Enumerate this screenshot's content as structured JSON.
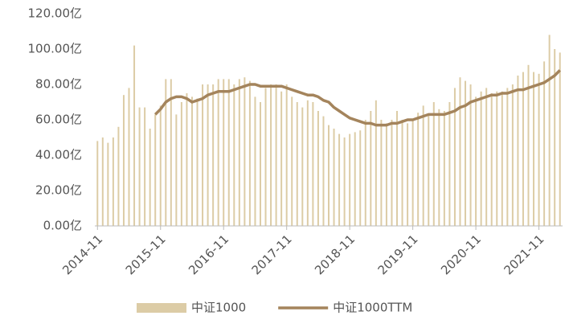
{
  "chart_data": {
    "type": "bar",
    "categories": [
      "2014-11",
      null,
      null,
      null,
      null,
      null,
      null,
      null,
      null,
      null,
      null,
      null,
      "2015-11",
      null,
      null,
      null,
      null,
      null,
      null,
      null,
      null,
      null,
      null,
      null,
      "2016-11",
      null,
      null,
      null,
      null,
      null,
      null,
      null,
      null,
      null,
      null,
      null,
      "2017-11",
      null,
      null,
      null,
      null,
      null,
      null,
      null,
      null,
      null,
      null,
      null,
      "2018-11",
      null,
      null,
      null,
      null,
      null,
      null,
      null,
      null,
      null,
      null,
      null,
      "2019-11",
      null,
      null,
      null,
      null,
      null,
      null,
      null,
      null,
      null,
      null,
      null,
      "2020-11",
      null,
      null,
      null,
      null,
      null,
      null,
      null,
      null,
      null,
      null,
      null,
      "2021-11",
      null,
      null,
      null,
      null
    ],
    "series": [
      {
        "name": "中证1000",
        "type": "bar",
        "color": "#dccca6",
        "values": [
          48,
          50,
          47,
          50,
          56,
          74,
          78,
          102,
          67,
          67,
          55,
          63,
          68,
          83,
          83,
          63,
          70,
          75,
          73,
          72,
          80,
          80,
          80,
          83,
          83,
          83,
          80,
          83,
          84,
          82,
          73,
          70,
          78,
          80,
          80,
          76,
          80,
          73,
          70,
          67,
          71,
          70,
          65,
          62,
          57,
          55,
          52,
          50,
          52,
          53,
          54,
          60,
          65,
          71,
          60,
          58,
          60,
          65,
          60,
          58,
          60,
          64,
          68,
          63,
          70,
          66,
          65,
          70,
          78,
          84,
          82,
          80,
          73,
          76,
          78,
          75,
          76,
          76,
          78,
          80,
          85,
          87,
          91,
          87,
          86,
          93,
          108,
          100,
          98
        ]
      },
      {
        "name": "中证1000TTM",
        "type": "line",
        "color": "#a4845c",
        "values": [
          null,
          null,
          null,
          null,
          null,
          null,
          null,
          null,
          null,
          null,
          null,
          63,
          66,
          70,
          72,
          73,
          73,
          72,
          70,
          71,
          72,
          74,
          75,
          76,
          76,
          76,
          77,
          78,
          79,
          80,
          80,
          79,
          79,
          79,
          79,
          79,
          78,
          77,
          76,
          75,
          74,
          74,
          73,
          71,
          70,
          67,
          65,
          63,
          61,
          60,
          59,
          58,
          58,
          57,
          57,
          57,
          58,
          58,
          59,
          60,
          60,
          61,
          62,
          63,
          63,
          63,
          63,
          64,
          65,
          67,
          68,
          70,
          71,
          72,
          73,
          74,
          74,
          75,
          75,
          76,
          77,
          77,
          78,
          79,
          80,
          81,
          83,
          85,
          88
        ]
      }
    ],
    "ylim": [
      0,
      120
    ],
    "yticks": [
      {
        "value": 0,
        "label": "0.00亿"
      },
      {
        "value": 20,
        "label": "20.00亿"
      },
      {
        "value": 40,
        "label": "40.00亿"
      },
      {
        "value": 60,
        "label": "60.00亿"
      },
      {
        "value": 80,
        "label": "80.00亿"
      },
      {
        "value": 100,
        "label": "100.00亿"
      },
      {
        "value": 120,
        "label": "120.00亿"
      }
    ],
    "grid": false,
    "legend": "bottom"
  }
}
